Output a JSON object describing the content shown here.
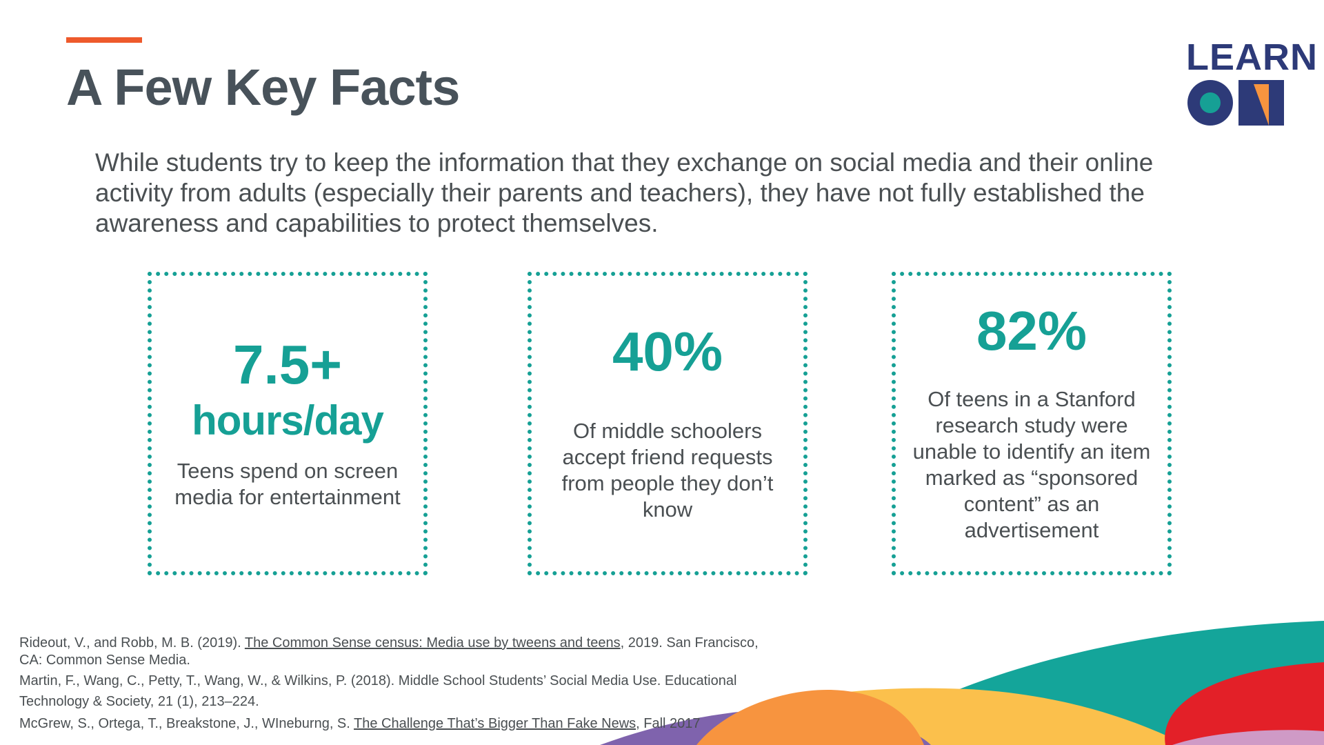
{
  "slide": {
    "title": "A Few Key Facts",
    "intro": "While students try to keep the information that they exchange on social media and their online activity from adults (especially their parents and teachers), they have not fully established the awareness and capabilities to protect themselves."
  },
  "logo": {
    "line1": "LEARN",
    "line2": "ON"
  },
  "facts": [
    {
      "number": "7.5+",
      "unit": "hours/day",
      "description": "Teens spend on screen media for entertainment"
    },
    {
      "number": "40%",
      "description": "Of middle schoolers accept friend requests from people they don’t know"
    },
    {
      "number": "82%",
      "description": "Of teens in a Stanford research study were unable to identify an item marked as “sponsored content” as an advertisement"
    }
  ],
  "references": [
    {
      "before": "Rideout, V., and Robb, M. B. (2019). ",
      "link": "The Common Sense census: Media use by tweens and teens",
      "after": ", 2019. San Francisco, CA: Common Sense Media."
    },
    {
      "text": "Martin, F., Wang, C., Petty, T., Wang, W., & Wilkins, P. (2018). Middle School Students’ Social Media Use. Educational Technology & Society, 21 (1), 213–224."
    },
    {
      "before": "McGrew, S., Ortega, T., Breakstone, J., WIneburng, S. ",
      "link": "The Challenge That’s Bigger Than Fake News",
      "after": ", Fall 2017"
    }
  ],
  "colors": {
    "accent": "#ee5a2c",
    "teal": "#16a095",
    "navy": "#2d3a78",
    "wave_teal": "#14a59a",
    "wave_yellow": "#fbc04c",
    "wave_orange": "#f7943f",
    "wave_purple": "#7f63ad",
    "wave_red": "#e32028",
    "wave_pink": "#cf9ac6"
  }
}
